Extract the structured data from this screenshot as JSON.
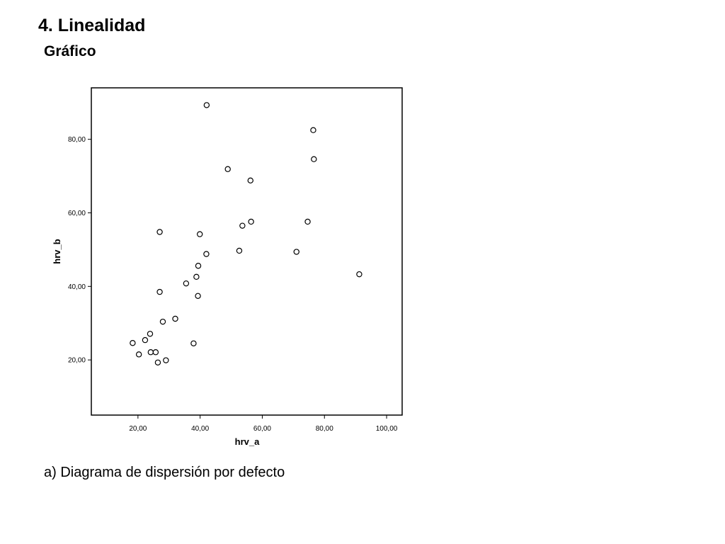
{
  "slide": {
    "title": "4. Linealidad",
    "subtitle": "Gráfico",
    "caption": "a) Diagrama de dispersión por defecto"
  },
  "chart_data": {
    "type": "scatter",
    "xlabel": "hrv_a",
    "ylabel": "hrv_b",
    "xlim": [
      5,
      105
    ],
    "ylim": [
      5,
      94
    ],
    "x_ticks": [
      20,
      40,
      60,
      80,
      100
    ],
    "x_tick_labels": [
      "20,00",
      "40,00",
      "60,00",
      "80,00",
      "100,00"
    ],
    "y_ticks": [
      20,
      40,
      60,
      80
    ],
    "y_tick_labels": [
      "20,00",
      "40,00",
      "60,00",
      "80,00"
    ],
    "grid": false,
    "marker": "open-circle",
    "points": [
      {
        "x": 42.1,
        "y": 89.3
      },
      {
        "x": 76.4,
        "y": 82.5
      },
      {
        "x": 76.6,
        "y": 74.6
      },
      {
        "x": 48.9,
        "y": 71.9
      },
      {
        "x": 56.2,
        "y": 68.8
      },
      {
        "x": 27.0,
        "y": 54.8
      },
      {
        "x": 39.9,
        "y": 54.2
      },
      {
        "x": 53.6,
        "y": 56.5
      },
      {
        "x": 56.4,
        "y": 57.6
      },
      {
        "x": 74.6,
        "y": 57.6
      },
      {
        "x": 42.0,
        "y": 48.8
      },
      {
        "x": 52.6,
        "y": 49.7
      },
      {
        "x": 71.0,
        "y": 49.4
      },
      {
        "x": 39.4,
        "y": 45.6
      },
      {
        "x": 91.2,
        "y": 43.3
      },
      {
        "x": 38.8,
        "y": 42.6
      },
      {
        "x": 35.5,
        "y": 40.8
      },
      {
        "x": 27.0,
        "y": 38.5
      },
      {
        "x": 39.3,
        "y": 37.4
      },
      {
        "x": 32.0,
        "y": 31.2
      },
      {
        "x": 28.0,
        "y": 30.4
      },
      {
        "x": 23.9,
        "y": 27.1
      },
      {
        "x": 22.3,
        "y": 25.4
      },
      {
        "x": 18.3,
        "y": 24.6
      },
      {
        "x": 37.9,
        "y": 24.5
      },
      {
        "x": 24.1,
        "y": 22.1
      },
      {
        "x": 25.7,
        "y": 22.1
      },
      {
        "x": 20.3,
        "y": 21.5
      },
      {
        "x": 29.0,
        "y": 19.9
      },
      {
        "x": 26.4,
        "y": 19.3
      }
    ]
  }
}
